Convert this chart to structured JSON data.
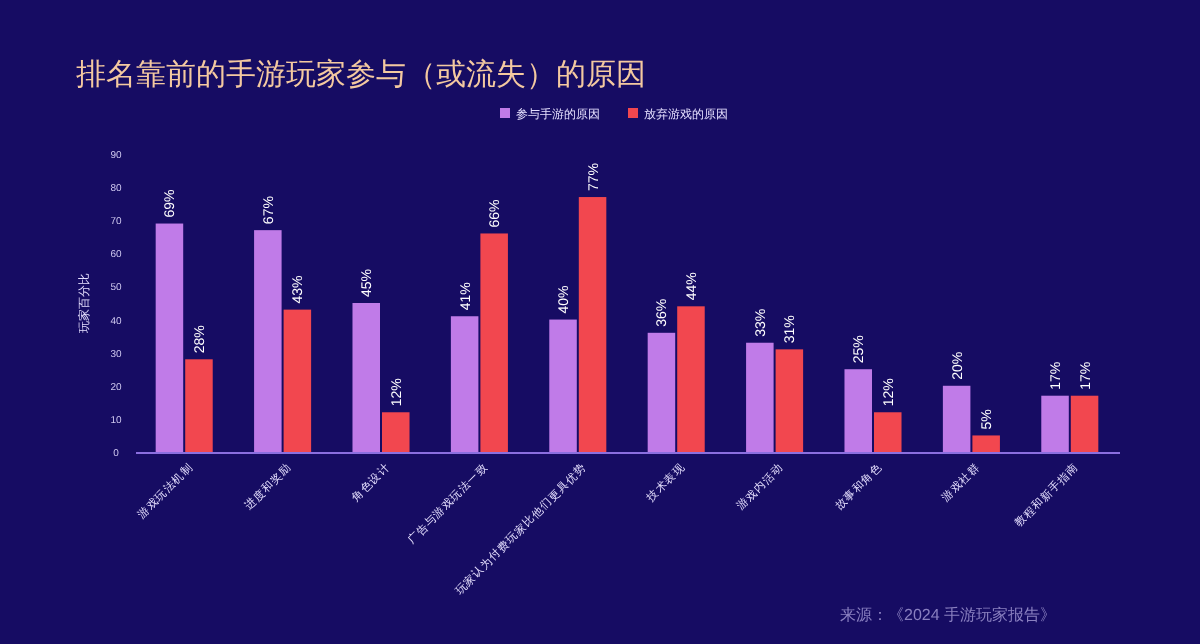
{
  "chart_data": {
    "type": "bar",
    "title": "排名靠前的手游玩家参与（或流失）的原因",
    "ylabel": "玩家百分比",
    "categories": [
      "游戏玩法机制",
      "进度和奖励",
      "角色设计",
      "广告与游戏玩法一致",
      "玩家认为付费玩家比他们更具优势",
      "技术表现",
      "游戏内活动",
      "故事和角色",
      "游戏社群",
      "教程和新手指南"
    ],
    "series": [
      {
        "name": "参与手游的原因",
        "color": "#c07be8",
        "values": [
          69,
          67,
          45,
          41,
          40,
          36,
          33,
          25,
          20,
          17
        ],
        "value_labels": [
          "69%",
          "67%",
          "45%",
          "41%",
          "40%",
          "36%",
          "33%",
          "25%",
          "20%",
          "17%"
        ]
      },
      {
        "name": "放弃游戏的原因",
        "color": "#f2474f",
        "values": [
          28,
          43,
          12,
          66,
          77,
          44,
          31,
          12,
          5,
          17
        ],
        "value_labels": [
          "28%",
          "43%",
          "12%",
          "66%",
          "77%",
          "44%",
          "31%",
          "12%",
          "5%",
          "17%"
        ]
      }
    ],
    "ylim": [
      0,
      90
    ],
    "yticks": [
      0,
      10,
      20,
      30,
      40,
      50,
      60,
      70,
      80,
      90
    ],
    "grid": false,
    "legend": "top",
    "annotations": [
      "来源：《2024 手游玩家报告》"
    ]
  }
}
